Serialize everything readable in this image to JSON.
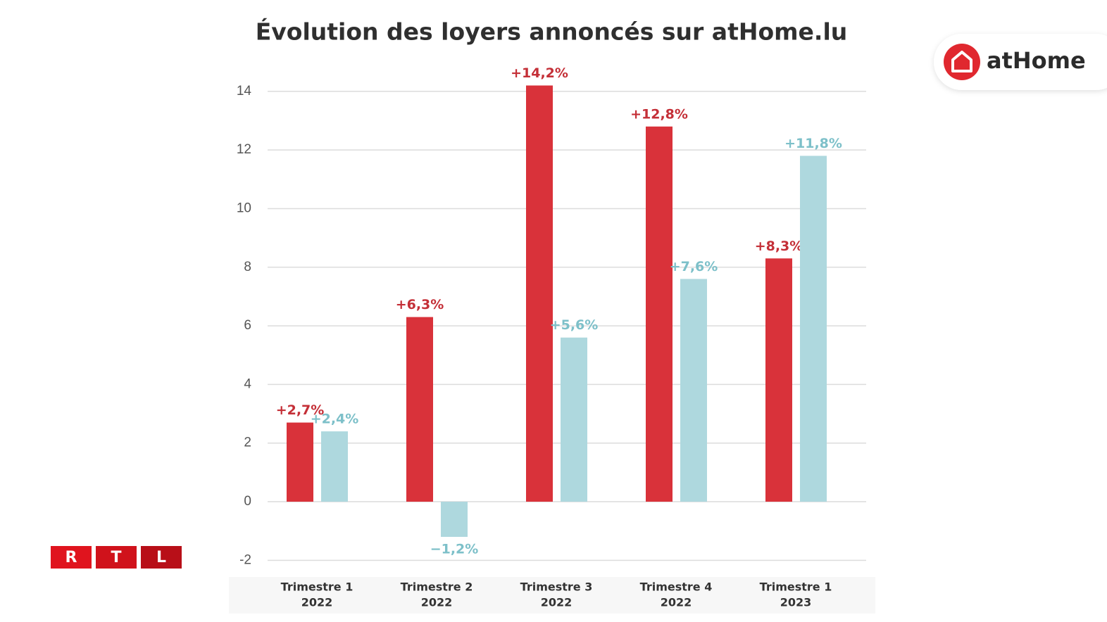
{
  "chart_data": {
    "type": "bar",
    "title": "Évolution des loyers annoncés sur atHome.lu",
    "categories": [
      [
        "Trimestre 1",
        "2022"
      ],
      [
        "Trimestre 2",
        "2022"
      ],
      [
        "Trimestre 3",
        "2022"
      ],
      [
        "Trimestre 4",
        "2022"
      ],
      [
        "Trimestre 1",
        "2023"
      ]
    ],
    "series": [
      {
        "color": "#d9323a",
        "label_color": "#c42f37",
        "values": [
          2.7,
          6.3,
          14.2,
          12.8,
          8.3
        ],
        "value_labels": [
          "+2,7%",
          "+6,3%",
          "+14,2%",
          "+12,8%",
          "+8,3%"
        ]
      },
      {
        "color": "#aed8de",
        "label_color": "#7dc0c9",
        "values": [
          2.4,
          -1.2,
          5.6,
          7.6,
          11.8
        ],
        "value_labels": [
          "+2,4%",
          "−1,2%",
          "+5,6%",
          "+7,6%",
          "+11,8%"
        ]
      }
    ],
    "ylim": [
      -2.4,
      14.5
    ],
    "yticks": [
      -2,
      0,
      2,
      4,
      6,
      8,
      10,
      12,
      14
    ],
    "grid": true
  },
  "logos": {
    "athome": "atHome",
    "rtl": [
      "R",
      "T",
      "L"
    ]
  }
}
